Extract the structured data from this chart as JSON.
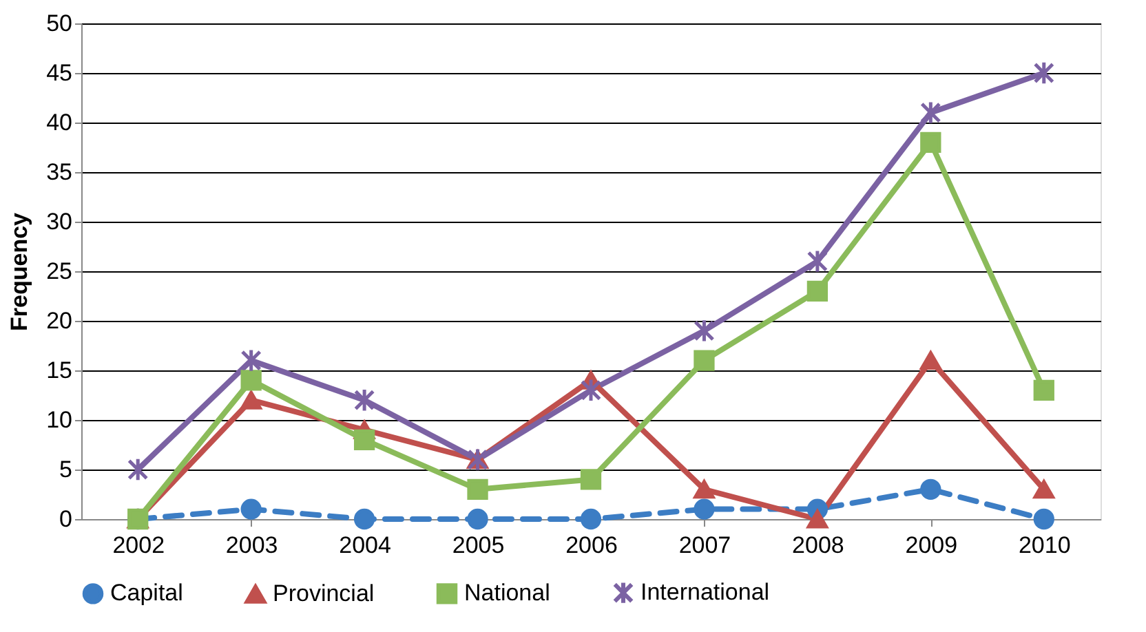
{
  "chart_data": {
    "type": "line",
    "ylabel": "Frequency",
    "categories": [
      "2002",
      "2003",
      "2004",
      "2005",
      "2006",
      "2007",
      "2008",
      "2009",
      "2010"
    ],
    "series": [
      {
        "name": "Capital",
        "color": "#3c7dc4",
        "marker": "circle",
        "line_style": "dashed",
        "values": [
          0,
          1,
          0,
          0,
          0,
          1,
          1,
          3,
          0
        ]
      },
      {
        "name": "Provincial",
        "color": "#c0504d",
        "marker": "triangle",
        "line_style": "solid",
        "values": [
          0,
          12,
          9,
          6,
          14,
          3,
          0,
          16,
          3
        ]
      },
      {
        "name": "National",
        "color": "#8bbb5a",
        "marker": "square",
        "line_style": "solid",
        "values": [
          0,
          14,
          8,
          3,
          4,
          16,
          23,
          38,
          13
        ]
      },
      {
        "name": "International",
        "color": "#7b62a3",
        "marker": "cross",
        "line_style": "solid",
        "values": [
          5,
          16,
          12,
          6,
          13,
          19,
          26,
          41,
          45
        ]
      }
    ],
    "ylim": [
      0,
      50
    ],
    "yticks": [
      0,
      5,
      10,
      15,
      20,
      25,
      30,
      35,
      40,
      45,
      50
    ],
    "grid": "y",
    "legend": "bottom"
  }
}
